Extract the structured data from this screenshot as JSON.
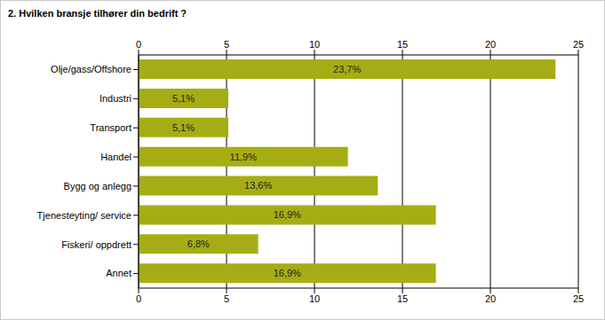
{
  "chart_data": {
    "type": "bar",
    "title": "2. Hvilken bransje tilhører din bedrift ?",
    "orientation": "horizontal",
    "categories": [
      "Olje/gass/Offshore",
      "Industri",
      "Transport",
      "Handel",
      "Bygg og anlegg",
      "Tjenesteyting/ service",
      "Fiskeri/ oppdrett",
      "Annet"
    ],
    "values": [
      23.7,
      5.1,
      5.1,
      11.9,
      13.6,
      16.9,
      6.8,
      16.9
    ],
    "value_labels": [
      "23,7%",
      "5,1%",
      "5,1%",
      "11,9%",
      "13,6%",
      "16,9%",
      "6,8%",
      "16,9%"
    ],
    "data_labels": true,
    "color": "#a6ad14",
    "xlim": [
      0,
      25
    ],
    "xticks": [
      0,
      5,
      10,
      15,
      20,
      25
    ],
    "grid": true
  }
}
